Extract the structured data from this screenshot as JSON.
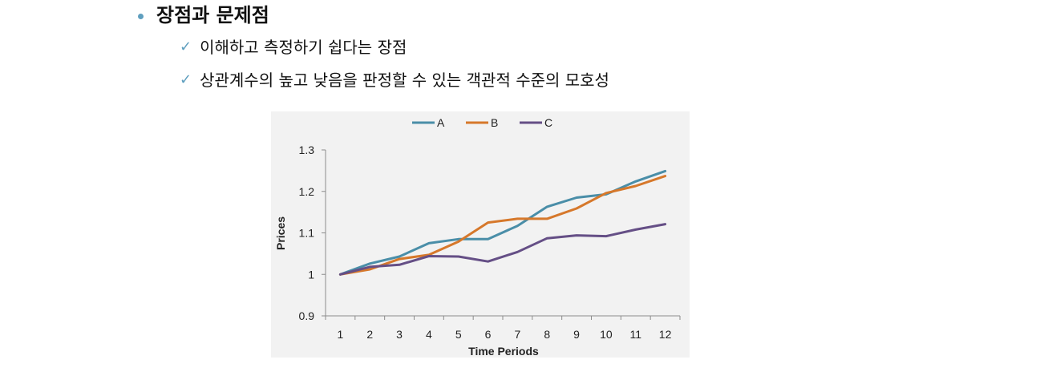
{
  "slide": {
    "heading": "장점과 문제점",
    "points": [
      "이해하고 측정하기 쉽다는 장점",
      "상관계수의 높고 낮음을 판정할 수 있는 객관적 수준의 모호성"
    ],
    "check_glyph": "✓"
  },
  "chart_data": {
    "type": "line",
    "x": [
      1,
      2,
      3,
      4,
      5,
      6,
      7,
      8,
      9,
      10,
      11,
      12
    ],
    "series": [
      {
        "name": "A",
        "color": "#4a8ea8",
        "values": [
          1.0,
          1.026,
          1.043,
          1.075,
          1.085,
          1.085,
          1.117,
          1.163,
          1.185,
          1.193,
          1.224,
          1.249
        ]
      },
      {
        "name": "B",
        "color": "#d6782b",
        "values": [
          1.0,
          1.012,
          1.037,
          1.047,
          1.079,
          1.125,
          1.134,
          1.134,
          1.159,
          1.196,
          1.213,
          1.237
        ]
      },
      {
        "name": "C",
        "color": "#654f86",
        "values": [
          1.0,
          1.018,
          1.023,
          1.044,
          1.043,
          1.031,
          1.054,
          1.087,
          1.094,
          1.092,
          1.108,
          1.121
        ]
      }
    ],
    "xlabel": "Time Periods",
    "ylabel": "Prices",
    "ylim": [
      0.9,
      1.3
    ],
    "yticks": [
      "0.9",
      "1",
      "1.1",
      "1.2",
      "1.3"
    ],
    "grid": false,
    "legend": "top"
  }
}
